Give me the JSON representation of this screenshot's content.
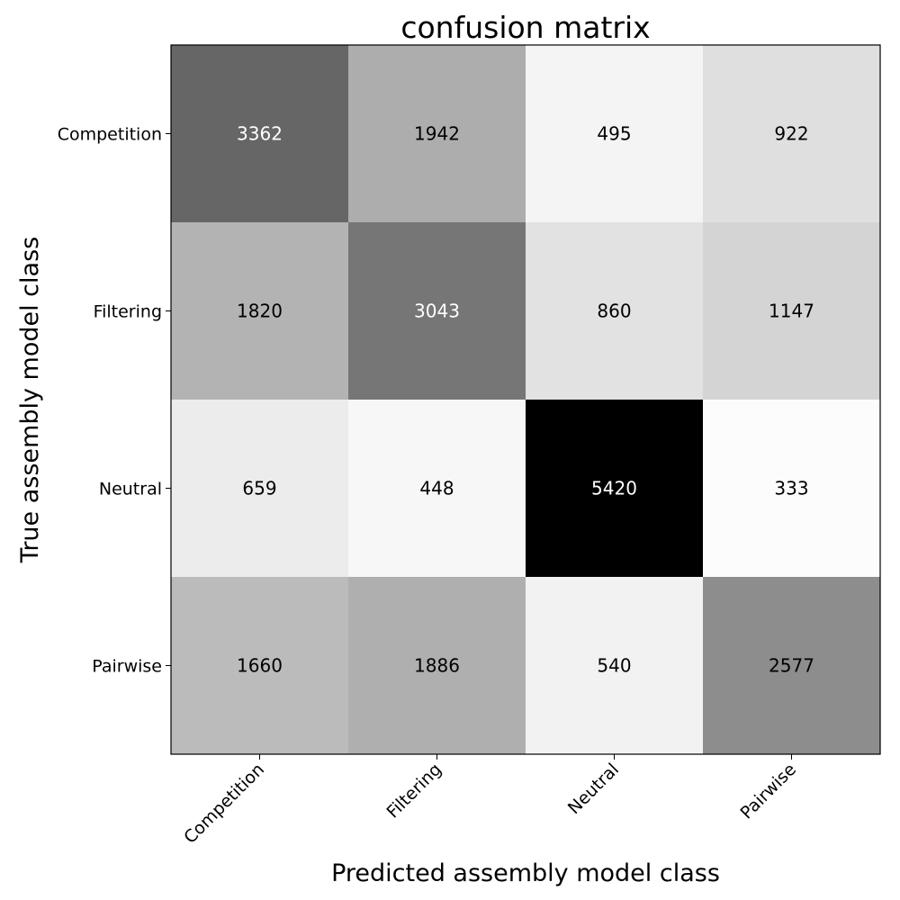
{
  "chart_data": {
    "type": "heatmap",
    "title": "confusion matrix",
    "xlabel": "Predicted assembly model class",
    "ylabel": "True assembly model class",
    "x_categories": [
      "Competition",
      "Filtering",
      "Neutral",
      "Pairwise"
    ],
    "y_categories": [
      "Competition",
      "Filtering",
      "Neutral",
      "Pairwise"
    ],
    "values": [
      [
        3362,
        1942,
        495,
        922
      ],
      [
        1820,
        3043,
        860,
        1147
      ],
      [
        659,
        448,
        5420,
        333
      ],
      [
        1660,
        1886,
        540,
        2577
      ]
    ],
    "colormap": "Greys",
    "value_range": [
      333,
      5420
    ],
    "grid": false,
    "legend": "none"
  }
}
